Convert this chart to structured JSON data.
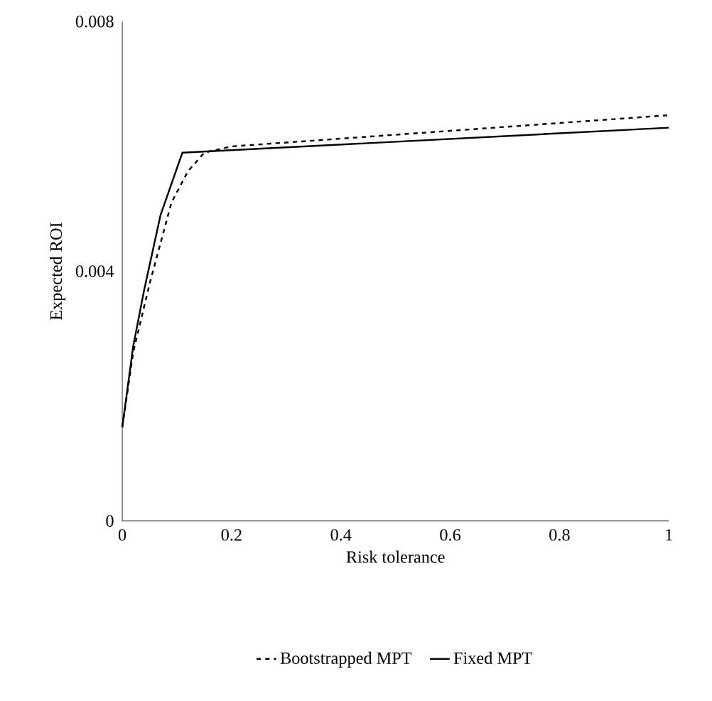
{
  "chart_data": {
    "type": "line",
    "xlabel": "Risk tolerance",
    "ylabel": "Expected ROI",
    "xlim": [
      0,
      1
    ],
    "ylim": [
      0,
      0.008
    ],
    "xticks": [
      0,
      0.2,
      0.4,
      0.6,
      0.8,
      1
    ],
    "yticks": [
      0,
      0.004,
      0.008
    ],
    "grid": false,
    "legend": "bottom",
    "marker": "none",
    "series": [
      {
        "name": "Bootstrapped MPT",
        "color": "#000000",
        "line_style": "dashed",
        "x": [
          0,
          0.02,
          0.05,
          0.09,
          0.12,
          0.15,
          0.2,
          1
        ],
        "values": [
          0.0015,
          0.0027,
          0.0038,
          0.0051,
          0.0056,
          0.0059,
          0.006,
          0.0065
        ]
      },
      {
        "name": "Fixed MPT",
        "color": "#000000",
        "line_style": "solid",
        "x": [
          0,
          0.02,
          0.04,
          0.07,
          0.11,
          1
        ],
        "values": [
          0.0015,
          0.0028,
          0.0037,
          0.0049,
          0.0059,
          0.0063
        ]
      }
    ]
  }
}
